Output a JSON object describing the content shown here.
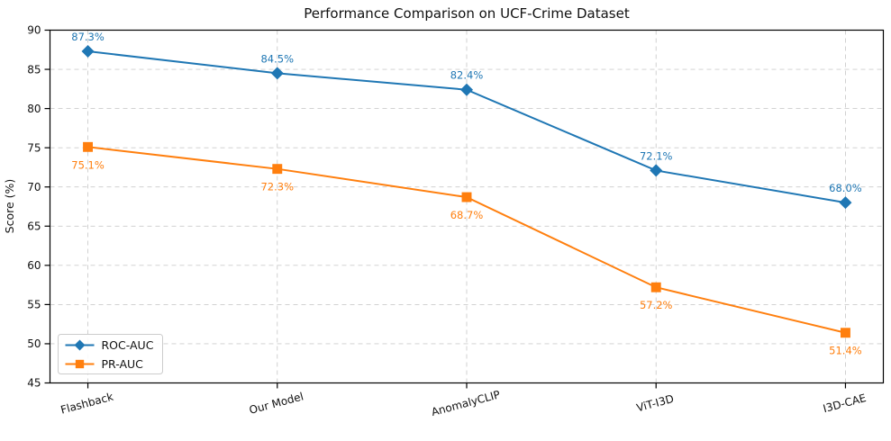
{
  "figure": {
    "background": "#ffffff",
    "spine_color": "#000000"
  },
  "chart_data": {
    "type": "line",
    "title": "Performance Comparison on UCF-Crime Dataset",
    "xlabel": "",
    "ylabel": "Score (%)",
    "categories": [
      "Flashback",
      "Our Model",
      "AnomalyCLIP",
      "ViT-I3D",
      "I3D-CAE"
    ],
    "series": [
      {
        "name": "ROC-AUC",
        "values": [
          87.3,
          84.5,
          82.4,
          72.1,
          68.0
        ],
        "labels": [
          "87.3%",
          "84.5%",
          "82.4%",
          "72.1%",
          "68.0%"
        ],
        "color": "#1f77b4",
        "marker": "diamond",
        "label_position": "above"
      },
      {
        "name": "PR-AUC",
        "values": [
          75.1,
          72.3,
          68.7,
          57.2,
          51.4
        ],
        "labels": [
          "75.1%",
          "72.3%",
          "68.7%",
          "57.2%",
          "51.4%"
        ],
        "color": "#ff7f0e",
        "marker": "square",
        "label_position": "below"
      }
    ],
    "ylim": [
      45,
      90
    ],
    "yticks": [
      45,
      50,
      55,
      60,
      65,
      70,
      75,
      80,
      85,
      90
    ],
    "grid": "dashed",
    "grid_color": "#cccccc",
    "x_tick_rotation": 15,
    "legend": {
      "position": "lower-left"
    }
  }
}
